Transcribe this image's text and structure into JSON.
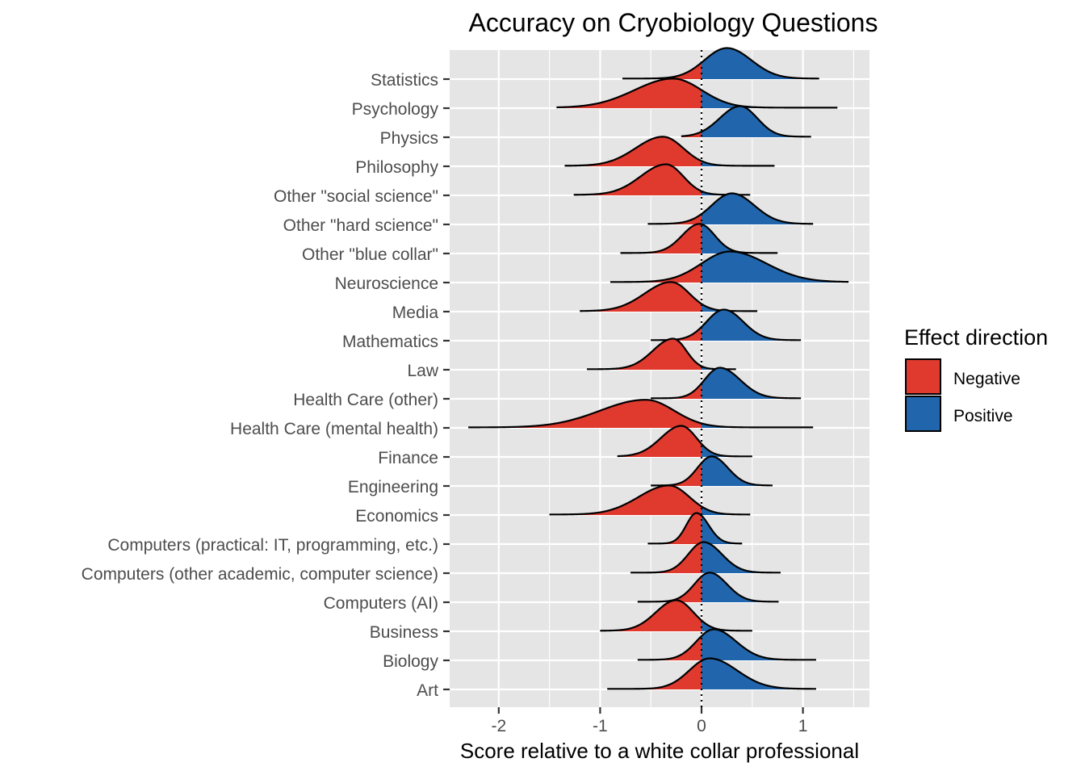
{
  "chart_data": {
    "type": "ridgeline",
    "title": "Accuracy on Cryobiology Questions",
    "xlabel": "Score relative to a white collar professional",
    "ylabel": "",
    "xlim": [
      -2.45,
      1.65
    ],
    "x_ticks": [
      -2,
      -1,
      0,
      1
    ],
    "x_tick_labels": [
      "-2",
      "-1",
      "0",
      "1"
    ],
    "reference_line_x": 0,
    "grid": true,
    "legend": {
      "title": "Effect direction",
      "placement": "right",
      "entries": [
        {
          "label": "Negative",
          "color": "#E03A2F"
        },
        {
          "label": "Positive",
          "color": "#2166AC"
        }
      ]
    },
    "colors": {
      "negative": "#E03A2F",
      "positive": "#2166AC",
      "panel": "#E5E5E5",
      "grid": "#FFFFFF"
    },
    "categories": [
      "Statistics",
      "Psychology",
      "Physics",
      "Philosophy",
      "Other \"social science\"",
      "Other \"hard science\"",
      "Other \"blue collar\"",
      "Neuroscience",
      "Media",
      "Mathematics",
      "Law",
      "Health Care (other)",
      "Health Care (mental health)",
      "Finance",
      "Engineering",
      "Economics",
      "Computers (practical: IT, programming, etc.)",
      "Computers (other academic, computer science)",
      "Computers (AI)",
      "Business",
      "Biology",
      "Art"
    ],
    "series": [
      {
        "name": "Statistics",
        "min": -0.78,
        "max": 1.16,
        "mode": 0.25,
        "sd_left": 0.22,
        "sd_right": 0.24,
        "height": 1.05
      },
      {
        "name": "Psychology",
        "min": -1.43,
        "max": 1.34,
        "mode": -0.28,
        "sd_left": 0.38,
        "sd_right": 0.28,
        "height": 1.0
      },
      {
        "name": "Physics",
        "min": -0.2,
        "max": 1.08,
        "mode": 0.38,
        "sd_left": 0.2,
        "sd_right": 0.17,
        "height": 1.05
      },
      {
        "name": "Philosophy",
        "min": -1.35,
        "max": 0.72,
        "mode": -0.38,
        "sd_left": 0.27,
        "sd_right": 0.2,
        "height": 1.0
      },
      {
        "name": "Other \"social science\"",
        "min": -1.26,
        "max": 0.48,
        "mode": -0.35,
        "sd_left": 0.25,
        "sd_right": 0.17,
        "height": 1.05
      },
      {
        "name": "Other \"hard science\"",
        "min": -0.53,
        "max": 1.1,
        "mode": 0.3,
        "sd_left": 0.2,
        "sd_right": 0.22,
        "height": 1.05
      },
      {
        "name": "Other \"blue collar\"",
        "min": -0.8,
        "max": 0.75,
        "mode": -0.02,
        "sd_left": 0.17,
        "sd_right": 0.15,
        "height": 1.0
      },
      {
        "name": "Neuroscience",
        "min": -0.9,
        "max": 1.45,
        "mode": 0.28,
        "sd_left": 0.28,
        "sd_right": 0.36,
        "height": 1.05
      },
      {
        "name": "Media",
        "min": -1.2,
        "max": 0.55,
        "mode": -0.3,
        "sd_left": 0.26,
        "sd_right": 0.18,
        "height": 1.0
      },
      {
        "name": "Mathematics",
        "min": -0.5,
        "max": 0.98,
        "mode": 0.22,
        "sd_left": 0.17,
        "sd_right": 0.19,
        "height": 1.05
      },
      {
        "name": "Law",
        "min": -1.13,
        "max": 0.34,
        "mode": -0.28,
        "sd_left": 0.2,
        "sd_right": 0.13,
        "height": 1.05
      },
      {
        "name": "Health Care (other)",
        "min": -0.5,
        "max": 0.98,
        "mode": 0.18,
        "sd_left": 0.15,
        "sd_right": 0.2,
        "height": 1.05
      },
      {
        "name": "Health Care (mental health)",
        "min": -2.3,
        "max": 1.1,
        "mode": -0.55,
        "sd_left": 0.45,
        "sd_right": 0.28,
        "height": 0.95
      },
      {
        "name": "Finance",
        "min": -0.83,
        "max": 0.5,
        "mode": -0.2,
        "sd_left": 0.2,
        "sd_right": 0.15,
        "height": 1.05
      },
      {
        "name": "Engineering",
        "min": -0.5,
        "max": 0.7,
        "mode": 0.1,
        "sd_left": 0.14,
        "sd_right": 0.16,
        "height": 1.0
      },
      {
        "name": "Economics",
        "min": -1.5,
        "max": 0.48,
        "mode": -0.32,
        "sd_left": 0.3,
        "sd_right": 0.2,
        "height": 1.0
      },
      {
        "name": "Computers (practical: IT, programming, etc.)",
        "min": -0.53,
        "max": 0.4,
        "mode": -0.05,
        "sd_left": 0.1,
        "sd_right": 0.12,
        "height": 1.05
      },
      {
        "name": "Computers (other academic, computer science)",
        "min": -0.7,
        "max": 0.78,
        "mode": 0.02,
        "sd_left": 0.15,
        "sd_right": 0.18,
        "height": 1.05
      },
      {
        "name": "Computers (AI)",
        "min": -0.63,
        "max": 0.76,
        "mode": 0.08,
        "sd_left": 0.15,
        "sd_right": 0.17,
        "height": 1.0
      },
      {
        "name": "Business",
        "min": -1.0,
        "max": 0.5,
        "mode": -0.25,
        "sd_left": 0.2,
        "sd_right": 0.17,
        "height": 1.05
      },
      {
        "name": "Biology",
        "min": -0.63,
        "max": 1.13,
        "mode": 0.12,
        "sd_left": 0.17,
        "sd_right": 0.22,
        "height": 1.05
      },
      {
        "name": "Art",
        "min": -0.93,
        "max": 1.13,
        "mode": 0.08,
        "sd_left": 0.2,
        "sd_right": 0.27,
        "height": 1.05
      }
    ]
  }
}
